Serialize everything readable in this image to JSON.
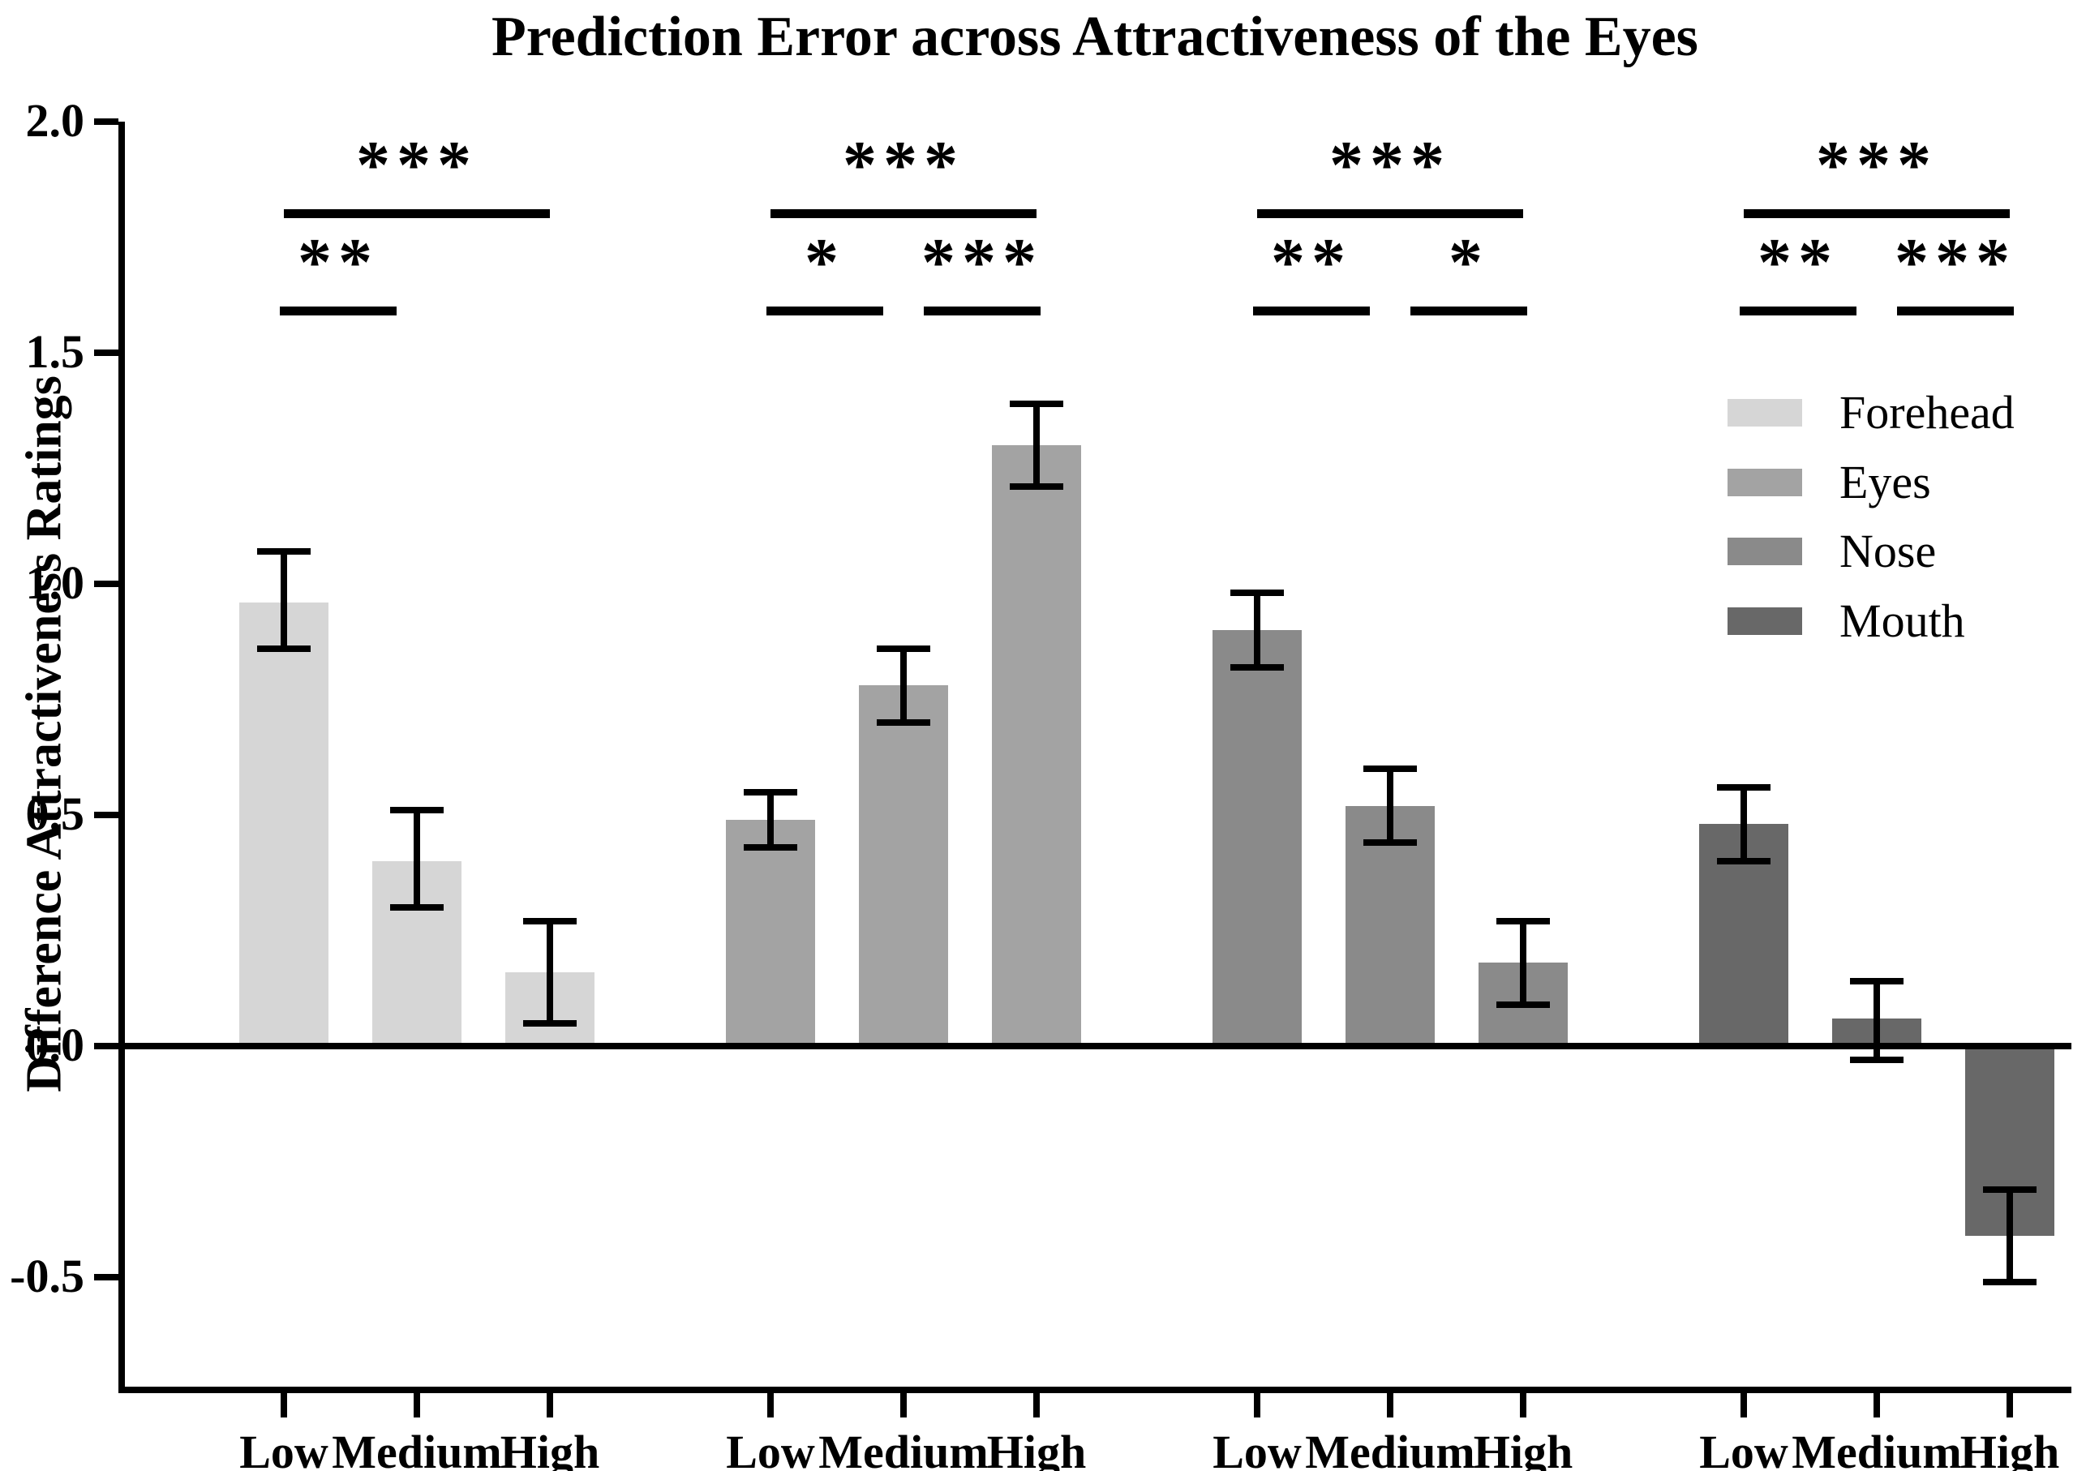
{
  "title": "Prediction Error across Attractiveness of the Eyes",
  "ylabel": "Difference Attractiveness Ratings",
  "chart_data": {
    "type": "bar",
    "title": "Prediction Error across Attractiveness of the Eyes",
    "xlabel": "",
    "ylabel": "Difference Attractiveness Ratings",
    "categories": [
      "Low",
      "Medium",
      "High"
    ],
    "series": [
      {
        "name": "Forehead",
        "color": "#d6d6d6",
        "values": [
          0.96,
          0.4,
          0.16
        ],
        "error_low": [
          0.86,
          0.3,
          0.05
        ],
        "error_high": [
          1.07,
          0.51,
          0.27
        ]
      },
      {
        "name": "Eyes",
        "color": "#a3a3a3",
        "values": [
          0.49,
          0.78,
          1.3
        ],
        "error_low": [
          0.43,
          0.7,
          1.21
        ],
        "error_high": [
          0.55,
          0.86,
          1.39
        ]
      },
      {
        "name": "Nose",
        "color": "#8a8a8a",
        "values": [
          0.9,
          0.52,
          0.18
        ],
        "error_low": [
          0.82,
          0.44,
          0.09
        ],
        "error_high": [
          0.98,
          0.6,
          0.27
        ]
      },
      {
        "name": "Mouth",
        "color": "#686868",
        "values": [
          0.48,
          0.06,
          -0.41
        ],
        "error_low": [
          0.4,
          -0.03,
          -0.51
        ],
        "error_high": [
          0.56,
          0.14,
          -0.31
        ]
      }
    ],
    "significance": [
      {
        "group": "Forehead",
        "overall": "***",
        "low_medium": "**",
        "medium_high": null
      },
      {
        "group": "Eyes",
        "overall": "***",
        "low_medium": "*",
        "medium_high": "***"
      },
      {
        "group": "Nose",
        "overall": "***",
        "low_medium": "**",
        "medium_high": "*"
      },
      {
        "group": "Mouth",
        "overall": "***",
        "low_medium": "**",
        "medium_high": "***"
      }
    ],
    "ylim": [
      -0.75,
      2.0
    ],
    "ytick_labels": [
      "2.0",
      "1.5",
      "1.0",
      "0.5",
      "0.0",
      "-0.5"
    ],
    "ytick_values": [
      2.0,
      1.5,
      1.0,
      0.5,
      0.0,
      -0.5
    ],
    "legend_position": "top-right",
    "grid": false,
    "error_bar_style": "both-caps",
    "axis_color": "#000000"
  }
}
